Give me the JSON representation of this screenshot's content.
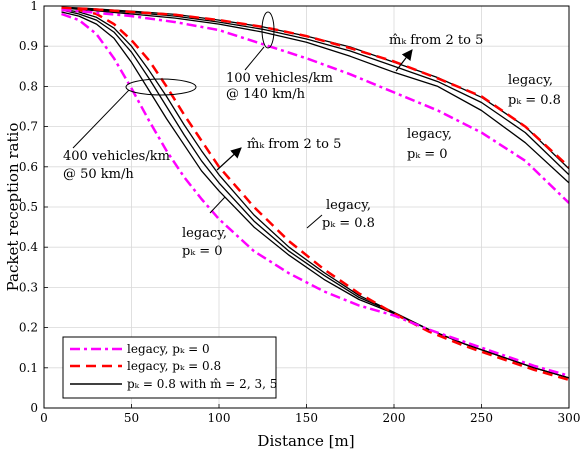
{
  "chart_data": {
    "type": "line",
    "xlabel": "Distance [m]",
    "ylabel": "Packet reception ratio",
    "xlim": [
      0,
      300
    ],
    "ylim": [
      0,
      1
    ],
    "xticks": [
      0,
      50,
      100,
      150,
      200,
      250,
      300
    ],
    "yticks": [
      0,
      0.1,
      0.2,
      0.3,
      0.4,
      0.5,
      0.6,
      0.7,
      0.8,
      0.9,
      1
    ],
    "grid": true,
    "legend_position": "bottom-left",
    "legend": [
      {
        "label": "legacy, pₖ = 0",
        "style": "dash-dot",
        "color": "#ff00ff"
      },
      {
        "label": "legacy, pₖ = 0.8",
        "style": "dashed",
        "color": "#ff0000"
      },
      {
        "label": "pₖ = 0.8 with m̂ = 2, 3, 5",
        "style": "solid",
        "color": "#000000"
      }
    ],
    "series": [
      {
        "group": "high",
        "style": "magenta-dashdot",
        "x": [
          10,
          25,
          50,
          75,
          100,
          125,
          150,
          175,
          200,
          225,
          250,
          275,
          300
        ],
        "y": [
          0.99,
          0.985,
          0.975,
          0.96,
          0.94,
          0.905,
          0.87,
          0.83,
          0.785,
          0.74,
          0.685,
          0.615,
          0.51
        ]
      },
      {
        "group": "high",
        "style": "red-dashed",
        "x": [
          10,
          25,
          50,
          75,
          100,
          125,
          150,
          175,
          200,
          225,
          250,
          275,
          300
        ],
        "y": [
          0.995,
          0.993,
          0.985,
          0.978,
          0.965,
          0.948,
          0.925,
          0.895,
          0.862,
          0.82,
          0.775,
          0.7,
          0.6
        ]
      },
      {
        "group": "high",
        "style": "black-solid",
        "x": [
          10,
          25,
          50,
          75,
          100,
          125,
          150,
          175,
          200,
          225,
          250,
          275,
          300
        ],
        "y": [
          0.995,
          0.99,
          0.98,
          0.97,
          0.955,
          0.935,
          0.91,
          0.875,
          0.835,
          0.8,
          0.74,
          0.66,
          0.56
        ]
      },
      {
        "group": "high",
        "style": "black-solid",
        "x": [
          10,
          25,
          50,
          75,
          100,
          125,
          150,
          175,
          200,
          225,
          250,
          275,
          300
        ],
        "y": [
          0.996,
          0.992,
          0.984,
          0.975,
          0.96,
          0.942,
          0.918,
          0.888,
          0.85,
          0.812,
          0.76,
          0.685,
          0.58
        ]
      },
      {
        "group": "high",
        "style": "black-solid",
        "x": [
          10,
          25,
          50,
          75,
          100,
          125,
          150,
          175,
          200,
          225,
          250,
          275,
          300
        ],
        "y": [
          0.997,
          0.994,
          0.987,
          0.979,
          0.965,
          0.948,
          0.925,
          0.898,
          0.86,
          0.822,
          0.773,
          0.7,
          0.595
        ]
      },
      {
        "group": "low",
        "style": "magenta-dashdot",
        "x": [
          10,
          20,
          30,
          40,
          50,
          60,
          70,
          80,
          90,
          100,
          120,
          140,
          160,
          180,
          200,
          220,
          240,
          260,
          280,
          300
        ],
        "y": [
          0.98,
          0.965,
          0.93,
          0.87,
          0.795,
          0.715,
          0.64,
          0.575,
          0.52,
          0.47,
          0.39,
          0.335,
          0.29,
          0.255,
          0.23,
          0.195,
          0.165,
          0.135,
          0.105,
          0.08
        ]
      },
      {
        "group": "low",
        "style": "red-dashed",
        "x": [
          10,
          20,
          30,
          40,
          50,
          60,
          70,
          80,
          90,
          100,
          120,
          140,
          160,
          180,
          200,
          220,
          240,
          260,
          280,
          300
        ],
        "y": [
          0.995,
          0.99,
          0.98,
          0.955,
          0.915,
          0.865,
          0.8,
          0.73,
          0.665,
          0.6,
          0.5,
          0.415,
          0.345,
          0.285,
          0.235,
          0.19,
          0.155,
          0.125,
          0.095,
          0.07
        ]
      },
      {
        "group": "low",
        "style": "black-solid",
        "x": [
          10,
          20,
          30,
          40,
          50,
          60,
          70,
          80,
          90,
          100,
          120,
          140,
          160,
          180,
          200,
          220,
          240,
          260,
          280,
          300
        ],
        "y": [
          0.985,
          0.975,
          0.955,
          0.92,
          0.86,
          0.79,
          0.72,
          0.655,
          0.59,
          0.54,
          0.45,
          0.38,
          0.32,
          0.27,
          0.235,
          0.195,
          0.16,
          0.13,
          0.1,
          0.075
        ]
      },
      {
        "group": "low",
        "style": "black-solid",
        "x": [
          10,
          20,
          30,
          40,
          50,
          60,
          70,
          80,
          90,
          100,
          120,
          140,
          160,
          180,
          200,
          220,
          240,
          260,
          280,
          300
        ],
        "y": [
          0.99,
          0.98,
          0.965,
          0.935,
          0.885,
          0.82,
          0.75,
          0.68,
          0.615,
          0.56,
          0.465,
          0.39,
          0.33,
          0.275,
          0.237,
          0.195,
          0.16,
          0.13,
          0.1,
          0.075
        ]
      },
      {
        "group": "low",
        "style": "black-solid",
        "x": [
          10,
          20,
          30,
          40,
          50,
          60,
          70,
          80,
          90,
          100,
          120,
          140,
          160,
          180,
          200,
          220,
          240,
          260,
          280,
          300
        ],
        "y": [
          0.992,
          0.985,
          0.972,
          0.945,
          0.9,
          0.84,
          0.775,
          0.705,
          0.64,
          0.58,
          0.48,
          0.4,
          0.337,
          0.28,
          0.238,
          0.195,
          0.16,
          0.13,
          0.1,
          0.075
        ]
      }
    ],
    "annotations": {
      "high_density_line1": "100 vehicles/km",
      "high_density_line2": "@ 140 km/h",
      "low_density_line1": "400 vehicles/km",
      "low_density_line2": "@ 50 km/h",
      "mhat_upper": "m̂ₖ from 2 to 5",
      "mhat_lower": "m̂ₖ from 2 to 5",
      "legacy_word": "legacy,",
      "pk_08": "pₖ = 0.8",
      "pk_0": "pₖ = 0"
    }
  }
}
